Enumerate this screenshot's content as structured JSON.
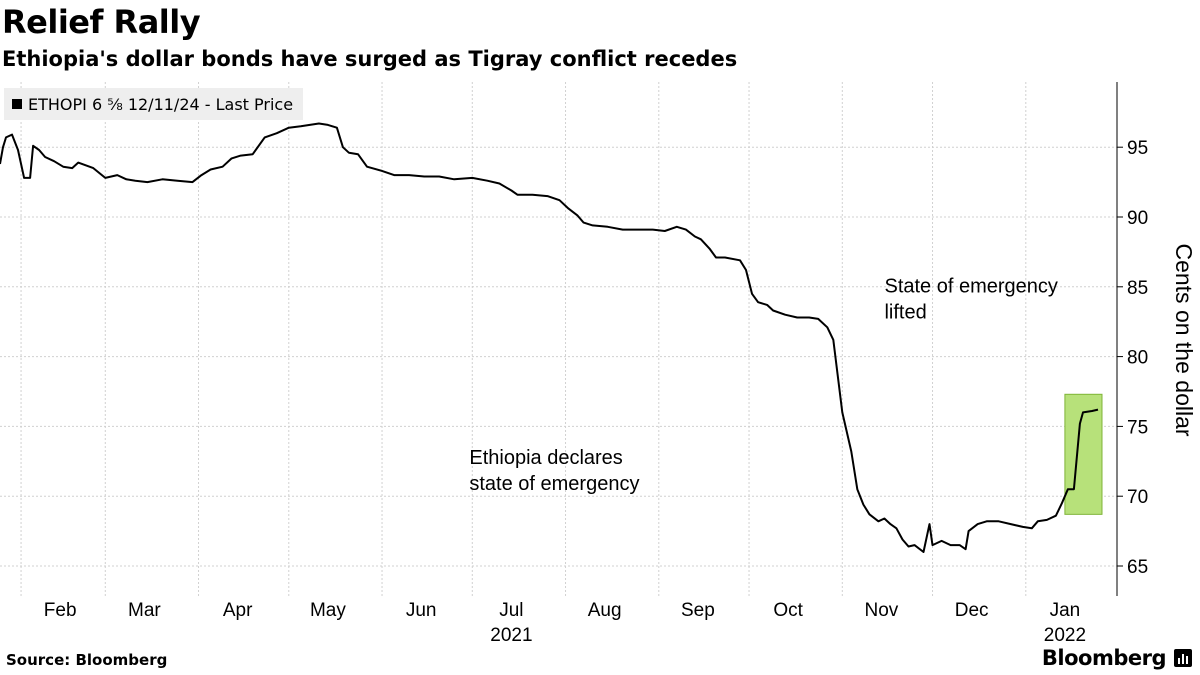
{
  "header": {
    "title": "Relief Rally",
    "subtitle": "Ethiopia's dollar bonds have surged as Tigray conflict recedes"
  },
  "legend": {
    "label": "ETHOPI 6 ⅝ 12/11/24 - Last Price"
  },
  "footer": {
    "source": "Source: Bloomberg",
    "brand": "Bloomberg"
  },
  "colors": {
    "line": "#000000",
    "grid": "#d0d0d0",
    "highlight_fill": "#b7e17a",
    "highlight_stroke": "#7fb437",
    "legend_bg": "#eeeeee"
  },
  "chart_data": {
    "type": "line",
    "title": "Relief Rally",
    "subtitle": "Ethiopia's dollar bonds have surged as Tigray conflict recedes",
    "ylabel": "Cents on the dollar",
    "ylim": [
      63,
      98
    ],
    "yticks": [
      65,
      70,
      75,
      80,
      85,
      90,
      95
    ],
    "xlim": [
      "2021-01-25",
      "2022-01-26"
    ],
    "xticks": [
      {
        "label": "Feb",
        "date": "2021-02-14"
      },
      {
        "label": "Mar",
        "date": "2021-03-14"
      },
      {
        "label": "Apr",
        "date": "2021-04-14"
      },
      {
        "label": "May",
        "date": "2021-05-14"
      },
      {
        "label": "Jun",
        "date": "2021-06-14"
      },
      {
        "label": "Jul",
        "date": "2021-07-14"
      },
      {
        "label": "Aug",
        "date": "2021-08-14"
      },
      {
        "label": "Sep",
        "date": "2021-09-14"
      },
      {
        "label": "Oct",
        "date": "2021-10-14"
      },
      {
        "label": "Nov",
        "date": "2021-11-14"
      },
      {
        "label": "Dec",
        "date": "2021-12-14"
      },
      {
        "label": "Jan",
        "date": "2022-01-14"
      }
    ],
    "year_labels": [
      {
        "label": "2021",
        "date": "2021-07-14"
      },
      {
        "label": "2022",
        "date": "2022-01-14"
      }
    ],
    "gridlines_x": [
      "2021-02-01",
      "2021-03-01",
      "2021-04-01",
      "2021-05-01",
      "2021-06-01",
      "2021-07-01",
      "2021-08-01",
      "2021-09-01",
      "2021-10-01",
      "2021-11-01",
      "2021-12-01",
      "2022-01-01"
    ],
    "series": [
      {
        "name": "ETHOPI 6 ⅝ 12/11/24 - Last Price",
        "points": [
          [
            "2021-01-25",
            93.8
          ],
          [
            "2021-01-26",
            95.0
          ],
          [
            "2021-01-27",
            95.7
          ],
          [
            "2021-01-29",
            95.9
          ],
          [
            "2021-01-31",
            94.8
          ],
          [
            "2021-02-02",
            92.8
          ],
          [
            "2021-02-04",
            92.8
          ],
          [
            "2021-02-05",
            95.1
          ],
          [
            "2021-02-07",
            94.8
          ],
          [
            "2021-02-09",
            94.3
          ],
          [
            "2021-02-12",
            94.0
          ],
          [
            "2021-02-15",
            93.6
          ],
          [
            "2021-02-18",
            93.5
          ],
          [
            "2021-02-20",
            93.9
          ],
          [
            "2021-02-25",
            93.5
          ],
          [
            "2021-03-01",
            92.8
          ],
          [
            "2021-03-03",
            92.9
          ],
          [
            "2021-03-05",
            93.0
          ],
          [
            "2021-03-08",
            92.7
          ],
          [
            "2021-03-11",
            92.6
          ],
          [
            "2021-03-15",
            92.5
          ],
          [
            "2021-03-20",
            92.7
          ],
          [
            "2021-03-25",
            92.6
          ],
          [
            "2021-03-30",
            92.5
          ],
          [
            "2021-04-02",
            93.0
          ],
          [
            "2021-04-05",
            93.4
          ],
          [
            "2021-04-09",
            93.6
          ],
          [
            "2021-04-12",
            94.2
          ],
          [
            "2021-04-15",
            94.4
          ],
          [
            "2021-04-19",
            94.5
          ],
          [
            "2021-04-23",
            95.7
          ],
          [
            "2021-04-27",
            96.0
          ],
          [
            "2021-05-01",
            96.4
          ],
          [
            "2021-05-05",
            96.5
          ],
          [
            "2021-05-08",
            96.6
          ],
          [
            "2021-05-11",
            96.7
          ],
          [
            "2021-05-14",
            96.6
          ],
          [
            "2021-05-17",
            96.4
          ],
          [
            "2021-05-19",
            95.0
          ],
          [
            "2021-05-21",
            94.6
          ],
          [
            "2021-05-24",
            94.5
          ],
          [
            "2021-05-27",
            93.6
          ],
          [
            "2021-06-01",
            93.3
          ],
          [
            "2021-06-05",
            93.0
          ],
          [
            "2021-06-10",
            93.0
          ],
          [
            "2021-06-15",
            92.9
          ],
          [
            "2021-06-20",
            92.9
          ],
          [
            "2021-06-25",
            92.7
          ],
          [
            "2021-07-01",
            92.8
          ],
          [
            "2021-07-06",
            92.6
          ],
          [
            "2021-07-10",
            92.4
          ],
          [
            "2021-07-14",
            91.9
          ],
          [
            "2021-07-16",
            91.6
          ],
          [
            "2021-07-21",
            91.6
          ],
          [
            "2021-07-26",
            91.5
          ],
          [
            "2021-07-30",
            91.2
          ],
          [
            "2021-08-02",
            90.6
          ],
          [
            "2021-08-05",
            90.1
          ],
          [
            "2021-08-07",
            89.6
          ],
          [
            "2021-08-10",
            89.4
          ],
          [
            "2021-08-15",
            89.3
          ],
          [
            "2021-08-20",
            89.1
          ],
          [
            "2021-08-25",
            89.1
          ],
          [
            "2021-08-30",
            89.1
          ],
          [
            "2021-09-03",
            89.0
          ],
          [
            "2021-09-07",
            89.3
          ],
          [
            "2021-09-10",
            89.1
          ],
          [
            "2021-09-13",
            88.6
          ],
          [
            "2021-09-15",
            88.4
          ],
          [
            "2021-09-18",
            87.7
          ],
          [
            "2021-09-20",
            87.1
          ],
          [
            "2021-09-23",
            87.1
          ],
          [
            "2021-09-28",
            86.9
          ],
          [
            "2021-09-30",
            86.2
          ],
          [
            "2021-10-02",
            84.5
          ],
          [
            "2021-10-04",
            83.9
          ],
          [
            "2021-10-07",
            83.7
          ],
          [
            "2021-10-09",
            83.3
          ],
          [
            "2021-10-13",
            83.0
          ],
          [
            "2021-10-17",
            82.8
          ],
          [
            "2021-10-21",
            82.8
          ],
          [
            "2021-10-24",
            82.7
          ],
          [
            "2021-10-27",
            82.1
          ],
          [
            "2021-10-29",
            81.2
          ],
          [
            "2021-11-01",
            76.0
          ],
          [
            "2021-11-04",
            73.2
          ],
          [
            "2021-11-06",
            70.5
          ],
          [
            "2021-11-08",
            69.4
          ],
          [
            "2021-11-10",
            68.7
          ],
          [
            "2021-11-13",
            68.2
          ],
          [
            "2021-11-15",
            68.4
          ],
          [
            "2021-11-17",
            68.0
          ],
          [
            "2021-11-19",
            67.7
          ],
          [
            "2021-11-21",
            66.9
          ],
          [
            "2021-11-23",
            66.4
          ],
          [
            "2021-11-25",
            66.5
          ],
          [
            "2021-11-28",
            66.0
          ],
          [
            "2021-11-30",
            68.0
          ],
          [
            "2021-12-01",
            66.5
          ],
          [
            "2021-12-04",
            66.8
          ],
          [
            "2021-12-07",
            66.5
          ],
          [
            "2021-12-10",
            66.5
          ],
          [
            "2021-12-12",
            66.2
          ],
          [
            "2021-12-13",
            67.5
          ],
          [
            "2021-12-16",
            68.0
          ],
          [
            "2021-12-19",
            68.2
          ],
          [
            "2021-12-23",
            68.2
          ],
          [
            "2021-12-27",
            68.0
          ],
          [
            "2021-12-31",
            67.8
          ],
          [
            "2022-01-03",
            67.7
          ],
          [
            "2022-01-05",
            68.2
          ],
          [
            "2022-01-08",
            68.3
          ],
          [
            "2022-01-11",
            68.6
          ],
          [
            "2022-01-13",
            69.5
          ],
          [
            "2022-01-15",
            70.5
          ],
          [
            "2022-01-17",
            70.5
          ],
          [
            "2022-01-19",
            75.2
          ],
          [
            "2022-01-20",
            76.0
          ],
          [
            "2022-01-23",
            76.1
          ],
          [
            "2022-01-25",
            76.2
          ]
        ]
      }
    ],
    "highlight": {
      "x_from": "2022-01-14",
      "x_to": "2022-01-25",
      "y_from": 68.7,
      "y_to": 77.3
    },
    "annotations": [
      {
        "lines": [
          "State of emergency",
          "lifted"
        ],
        "date": "2021-11-25",
        "y": 84.6
      },
      {
        "lines": [
          "Ethiopia declares",
          "state of emergency"
        ],
        "date": "2021-07-10",
        "y": 72.3
      }
    ],
    "grid": true,
    "legend_position": "top-left"
  }
}
